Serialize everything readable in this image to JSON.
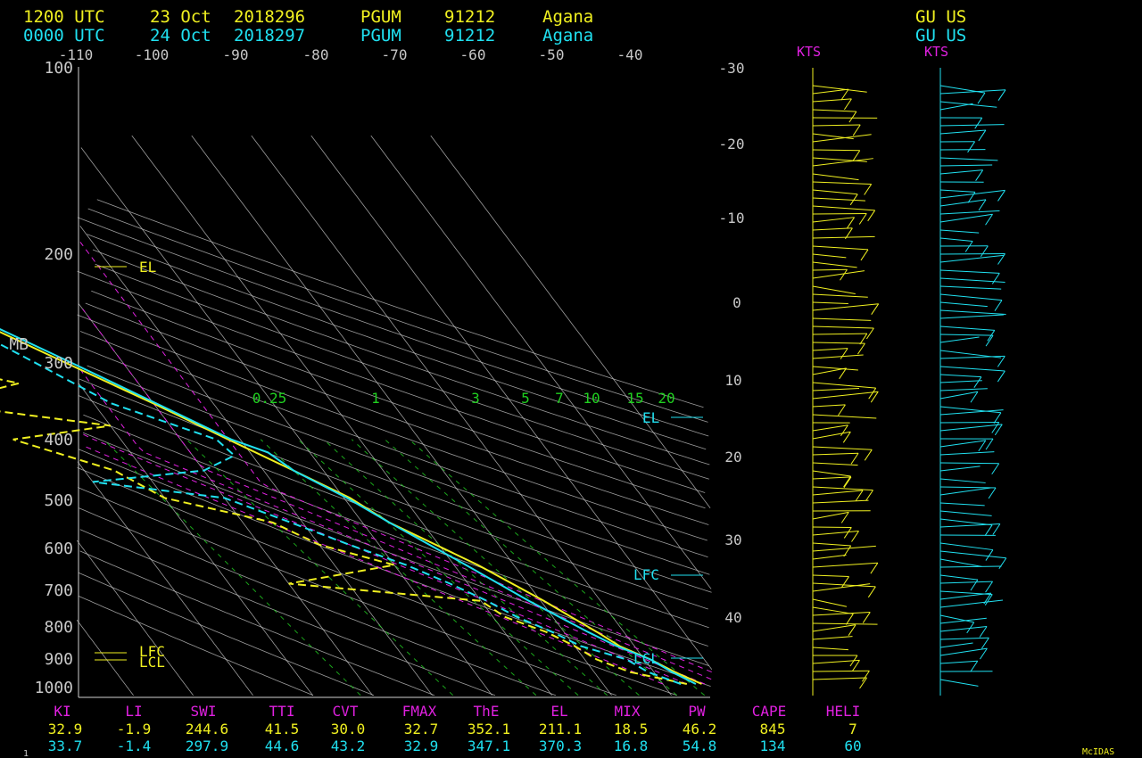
{
  "header": {
    "run1": {
      "time": "1200 UTC",
      "date": "23 Oct",
      "julian": "2018296",
      "station": "PGUM",
      "id": "91212",
      "name": "Agana",
      "country": "GU  US"
    },
    "run2": {
      "time": "0000 UTC",
      "date": "24 Oct",
      "julian": "2018297",
      "station": "PGUM",
      "id": "91212",
      "name": "Agana",
      "country": "GU  US"
    }
  },
  "colors": {
    "run1": "#f0f020",
    "run2": "#20e0f0",
    "magenta": "#e020e0",
    "green": "#20d020",
    "grid": "#d0d0d0",
    "label": "#c8c8c8"
  },
  "axes": {
    "pressure_unit": "MB",
    "wind_unit": "KTS",
    "pressure_ticks": [
      "100",
      "200",
      "300",
      "400",
      "500",
      "600",
      "700",
      "800",
      "900",
      "1000"
    ],
    "temp_top_labels": [
      "-110",
      "-100",
      "-90",
      "-80",
      "-70",
      "-60",
      "-50",
      "-40"
    ],
    "temp_right_labels": [
      "-30",
      "-20",
      "-10",
      "0",
      "10",
      "20",
      "30",
      "40"
    ],
    "mixing_ratio_labels": [
      "0.25",
      "1",
      "3",
      "5",
      "7",
      "10",
      "15",
      "20"
    ]
  },
  "levels": {
    "run1_el": "EL",
    "run1_lfc": "LFC",
    "run1_lcl": "LCL",
    "run2_el": "EL",
    "run2_lfc": "LFC",
    "run2_lcl": "LCL"
  },
  "indices": {
    "headers": [
      "KI",
      "LI",
      "SWI",
      "TTI",
      "CVT",
      "FMAX",
      "ThE",
      "EL",
      "MIX",
      "PW",
      "CAPE",
      "HELI"
    ],
    "run1": [
      "32.9",
      "-1.9",
      "244.6",
      "41.5",
      "30.0",
      "32.7",
      "352.1",
      "211.1",
      "18.5",
      "46.2",
      "845",
      "7"
    ],
    "run2": [
      "33.7",
      "-1.4",
      "297.9",
      "44.6",
      "43.2",
      "32.9",
      "347.1",
      "370.3",
      "16.8",
      "54.8",
      "134",
      "60"
    ]
  },
  "footer": {
    "frame": "1",
    "brand": "McIDAS"
  },
  "chart_data": {
    "type": "skew-t",
    "pressure_range": [
      1000,
      100
    ],
    "temp_range": [
      -110,
      40
    ],
    "series": [
      {
        "name": "1200 UTC 23 Oct",
        "temperature": [
          [
            1000,
            26.5
          ],
          [
            950,
            23.5
          ],
          [
            900,
            21.0
          ],
          [
            850,
            17.5
          ],
          [
            800,
            15.5
          ],
          [
            700,
            10.5
          ],
          [
            600,
            4.0
          ],
          [
            500,
            -5.5
          ],
          [
            450,
            -9.0
          ],
          [
            400,
            -15.0
          ],
          [
            350,
            -22.0
          ],
          [
            300,
            -30.0
          ],
          [
            250,
            -40.0
          ],
          [
            200,
            -52.0
          ],
          [
            175,
            -59.0
          ],
          [
            150,
            -67.0
          ],
          [
            125,
            -75.0
          ],
          [
            110,
            -78.5
          ],
          [
            100,
            -79.0
          ]
        ],
        "dewpoint": [
          [
            1000,
            24.0
          ],
          [
            950,
            16.0
          ],
          [
            900,
            12.0
          ],
          [
            850,
            10.0
          ],
          [
            800,
            7.0
          ],
          [
            750,
            2.0
          ],
          [
            700,
            0.0
          ],
          [
            650,
            -30.0
          ],
          [
            600,
            -10.0
          ],
          [
            550,
            -20.0
          ],
          [
            500,
            -25.0
          ],
          [
            450,
            -40.0
          ],
          [
            400,
            -45.0
          ],
          [
            350,
            -58.0
          ],
          [
            330,
            -40.0
          ],
          [
            300,
            -66.0
          ],
          [
            275,
            -50.0
          ],
          [
            250,
            -65.0
          ],
          [
            220,
            -55.0
          ],
          [
            200,
            -55.0
          ],
          [
            175,
            -63.0
          ],
          [
            150,
            -72.0
          ],
          [
            125,
            -81.0
          ],
          [
            110,
            -82.0
          ],
          [
            100,
            -80.0
          ]
        ]
      },
      {
        "name": "0000 UTC 24 Oct",
        "temperature": [
          [
            1000,
            25.5
          ],
          [
            950,
            23.0
          ],
          [
            900,
            21.0
          ],
          [
            850,
            17.0
          ],
          [
            800,
            14.0
          ],
          [
            700,
            8.0
          ],
          [
            600,
            2.0
          ],
          [
            500,
            -5.5
          ],
          [
            450,
            -9.5
          ],
          [
            400,
            -15.0
          ],
          [
            370,
            -17.0
          ],
          [
            350,
            -21.5
          ],
          [
            300,
            -29.5
          ],
          [
            250,
            -39.0
          ],
          [
            200,
            -51.0
          ],
          [
            175,
            -59.0
          ],
          [
            150,
            -68.0
          ],
          [
            125,
            -76.0
          ],
          [
            110,
            -79.0
          ],
          [
            100,
            -77.0
          ]
        ],
        "dewpoint": [
          [
            1000,
            23.0
          ],
          [
            950,
            19.0
          ],
          [
            900,
            17.0
          ],
          [
            850,
            11.0
          ],
          [
            800,
            8.0
          ],
          [
            750,
            4.0
          ],
          [
            700,
            1.0
          ],
          [
            650,
            -3.0
          ],
          [
            600,
            -8.0
          ],
          [
            550,
            -15.0
          ],
          [
            500,
            -22.0
          ],
          [
            450,
            -30.0
          ],
          [
            420,
            -50.0
          ],
          [
            400,
            -30.0
          ],
          [
            375,
            -23.0
          ],
          [
            350,
            -24.0
          ],
          [
            300,
            -37.0
          ],
          [
            250,
            -45.0
          ],
          [
            200,
            -55.0
          ],
          [
            175,
            -66.0
          ],
          [
            150,
            -76.0
          ],
          [
            125,
            -88.0
          ],
          [
            110,
            -84.0
          ],
          [
            100,
            -80.0
          ]
        ]
      }
    ]
  }
}
